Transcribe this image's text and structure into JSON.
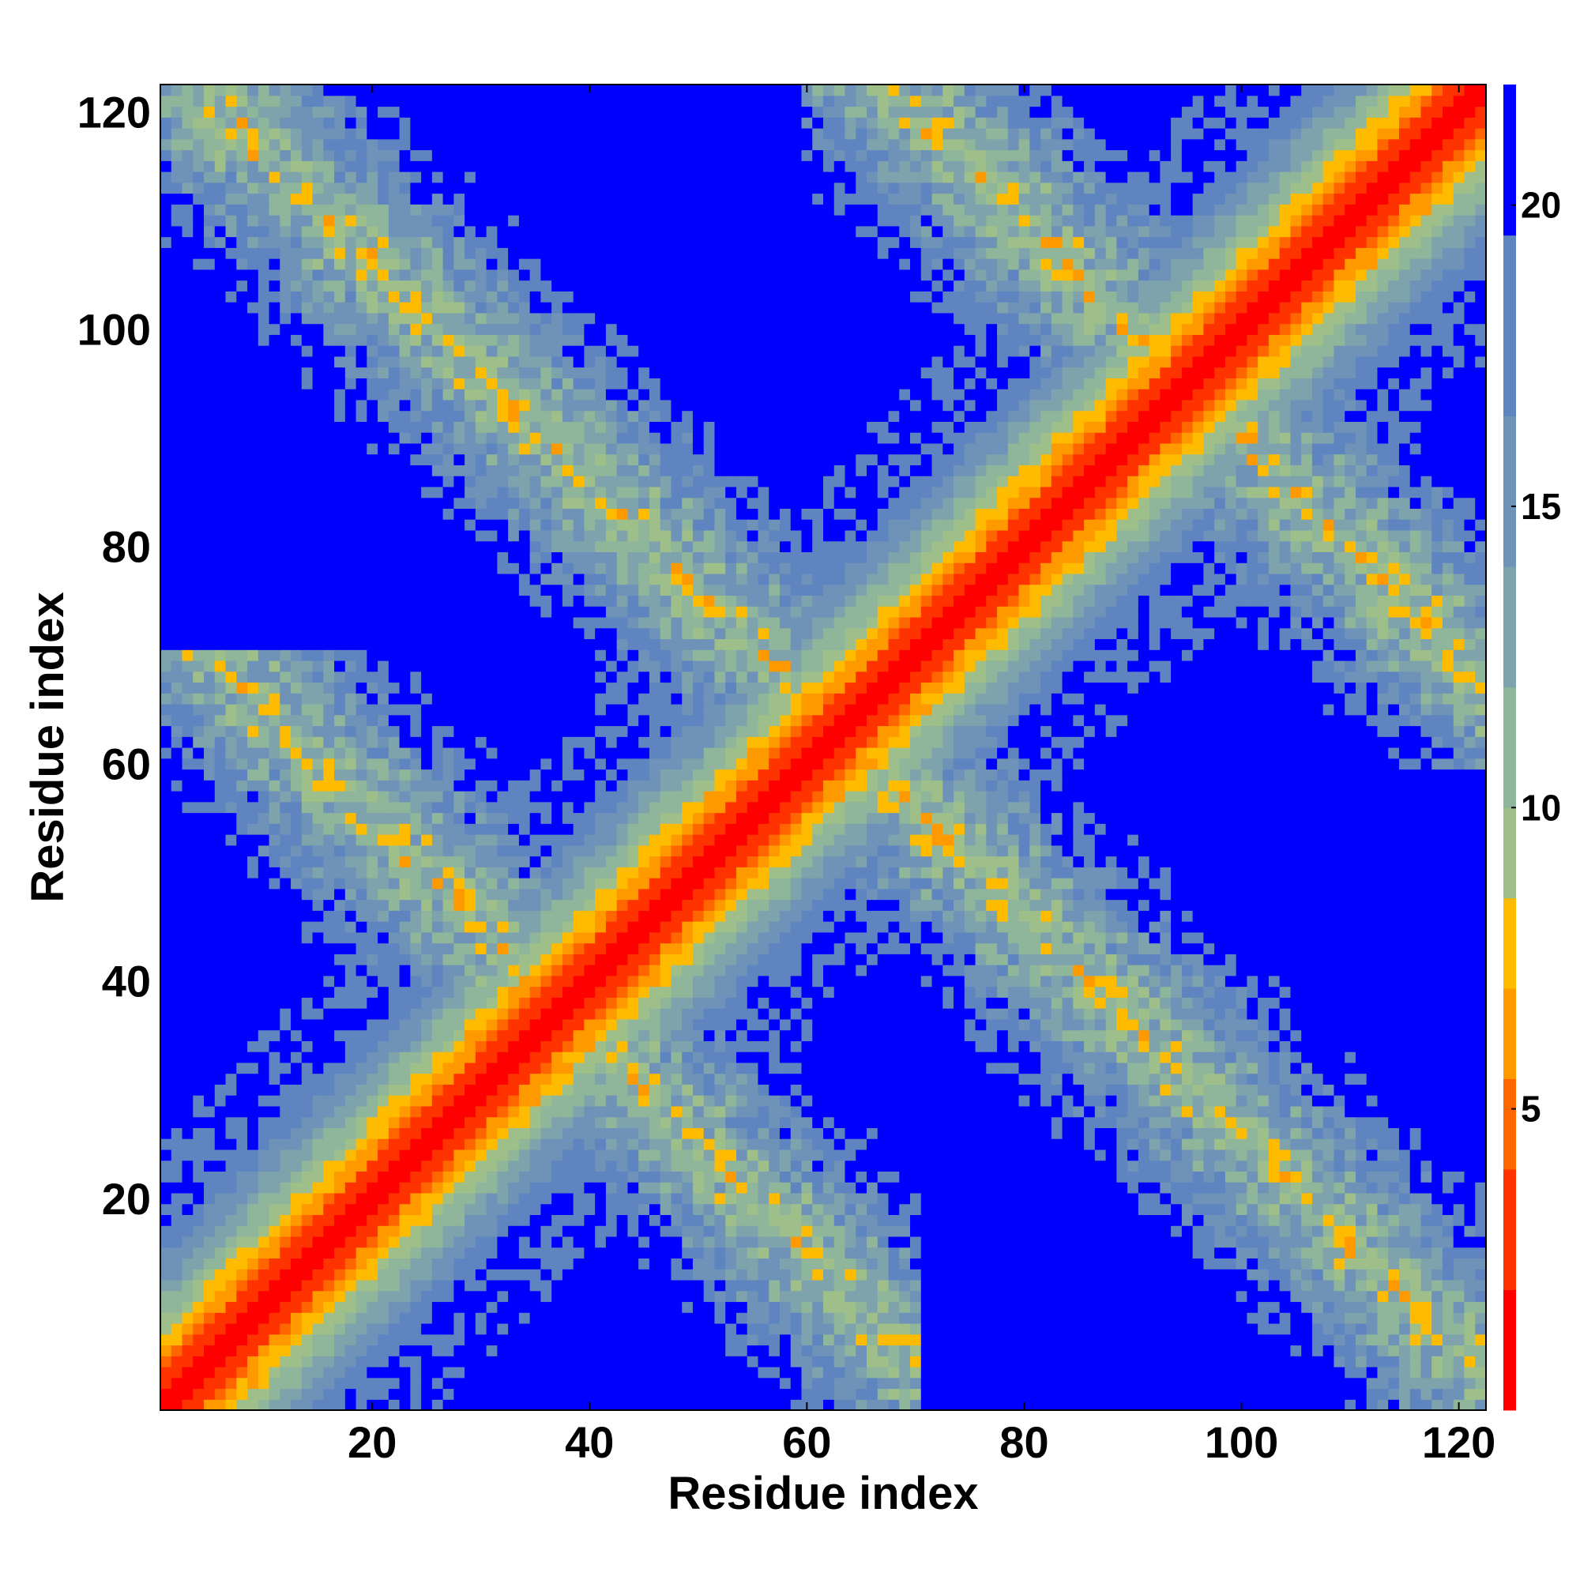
{
  "chart_data": {
    "type": "heatmap",
    "title": "",
    "xlabel": "Residue index",
    "ylabel": "Residue index",
    "n_residues": 122,
    "xlim": [
      1,
      122
    ],
    "ylim": [
      1,
      122
    ],
    "xticks": [
      20,
      40,
      60,
      80,
      100,
      120
    ],
    "yticks": [
      20,
      40,
      60,
      80,
      100,
      120
    ],
    "colorbar": {
      "ticks": [
        5,
        10,
        15,
        20
      ],
      "range": [
        0,
        22
      ],
      "colors": [
        "#ff0000",
        "#ff3300",
        "#ff6600",
        "#ff9900",
        "#ffbb00",
        "#9fbf8a",
        "#8fb59a",
        "#7ea3ac",
        "#6e92b8",
        "#5f85c0",
        "#0000ff"
      ]
    },
    "description_of_values": "Pairwise residue distance matrix; diagonal ~0, helical contacts along anti-diagonal bands; values >= 20 saturate to blue.",
    "structure": {
      "diagonal_width": 14,
      "antidiagonal_bands": [
        {
          "center_sum": 130,
          "lower_i": 1,
          "upper_i": 122
        },
        {
          "center_sum": 75,
          "lower_i": 1,
          "upper_i": 65
        },
        {
          "center_sum": 190,
          "lower_i": 60,
          "upper_i": 122
        }
      ]
    }
  }
}
